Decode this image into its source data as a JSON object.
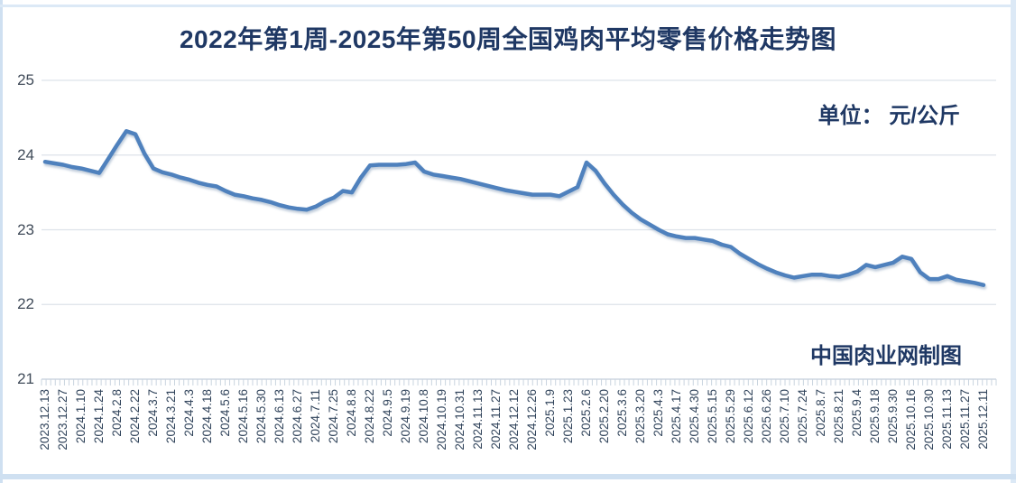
{
  "chart_data": {
    "type": "line",
    "title": "2022年第1周-2025年第50周全国鸡肉平均零售价格走势图",
    "unit_label": "单位： 元/公斤",
    "source_label": "中国肉业网制图",
    "ylabel": "元/公斤",
    "ylim": [
      21,
      25
    ],
    "yticks": [
      25,
      24,
      23,
      22,
      21
    ],
    "grid": true,
    "legend_position": "none",
    "line_color": "#4f81bd",
    "grid_color": "#dde3ea",
    "axis_color": "#c3cedb",
    "tick_color": "#c9d4df",
    "points_per_label": 2,
    "x_labels": [
      "2023.12.13",
      "2023.12.27",
      "2024.1.10",
      "2024.1.24",
      "2024.2.8",
      "2024.2.22",
      "2024.3.7",
      "2024.3.21",
      "2024.4.3",
      "2024.4.18",
      "2024.5.6",
      "2024.5.16",
      "2024.5.30",
      "2024.6.13",
      "2024.6.27",
      "2024.7.11",
      "2024.7.25",
      "2024.8.8",
      "2024.8.22",
      "2024.9.5",
      "2024.9.19",
      "2024.10.8",
      "2024.10.19",
      "2024.10.31",
      "2024.11.13",
      "2024.11.27",
      "2024.12.12",
      "2024.12.26",
      "2025.1.9",
      "2025.1.23",
      "2025.2.6",
      "2025.2.20",
      "2025.3.6",
      "2025.3.20",
      "2025.4.3",
      "2025.4.17",
      "2025.4.30",
      "2025.5.15",
      "2025.5.29",
      "2025.6.12",
      "2025.6.26",
      "2025.7.10",
      "2025.7.24",
      "2025.8.7",
      "2025.8.21",
      "2025.9.4",
      "2025.9.18",
      "2025.9.30",
      "2025.10.16",
      "2025.10.30",
      "2025.11.13",
      "2025.11.27",
      "2025.12.11"
    ],
    "values": [
      23.91,
      23.89,
      23.87,
      23.84,
      23.82,
      23.79,
      23.76,
      23.95,
      24.14,
      24.32,
      24.28,
      24.02,
      23.82,
      23.77,
      23.74,
      23.7,
      23.67,
      23.63,
      23.6,
      23.58,
      23.52,
      23.47,
      23.45,
      23.42,
      23.4,
      23.37,
      23.33,
      23.3,
      23.28,
      23.27,
      23.31,
      23.38,
      23.43,
      23.52,
      23.5,
      23.7,
      23.86,
      23.87,
      23.87,
      23.87,
      23.88,
      23.9,
      23.78,
      23.74,
      23.72,
      23.7,
      23.68,
      23.65,
      23.62,
      23.59,
      23.56,
      23.53,
      23.51,
      23.49,
      23.47,
      23.47,
      23.47,
      23.45,
      23.51,
      23.57,
      23.9,
      23.79,
      23.62,
      23.47,
      23.34,
      23.23,
      23.14,
      23.07,
      23.0,
      22.94,
      22.91,
      22.89,
      22.89,
      22.87,
      22.85,
      22.8,
      22.77,
      22.68,
      22.61,
      22.54,
      22.48,
      22.43,
      22.39,
      22.36,
      22.38,
      22.4,
      22.4,
      22.38,
      22.37,
      22.4,
      22.44,
      22.53,
      22.5,
      22.53,
      22.56,
      22.64,
      22.61,
      22.43,
      22.34,
      22.34,
      22.38,
      22.33,
      22.31,
      22.29,
      22.26
    ]
  }
}
